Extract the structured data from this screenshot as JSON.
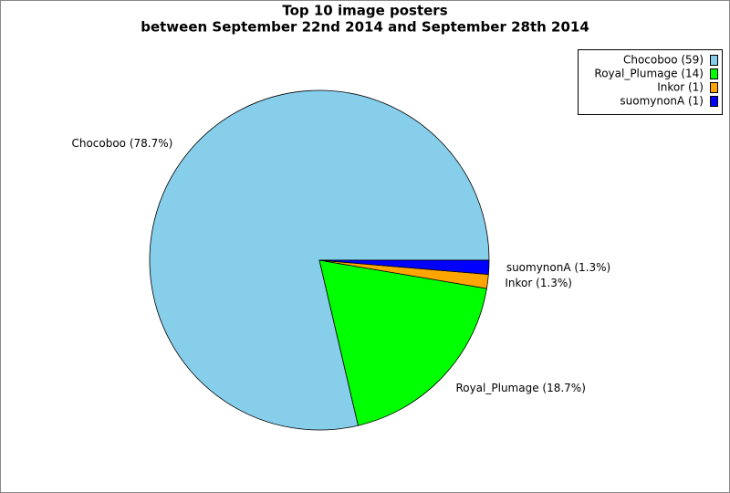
{
  "chart_data": {
    "type": "pie",
    "title": [
      "Top 10 image posters",
      "between September 22nd 2014 and September 28th 2014"
    ],
    "categories": [
      "Chocoboo (59)",
      "Royal_Plumage (14)",
      "Inkor (1)",
      "suomynonA (1)"
    ],
    "values": [
      59,
      14,
      1,
      1
    ],
    "value_labels": [
      "Chocoboo (78.7%)",
      "Royal_Plumage (18.7%)",
      "Inkor (1.3%)",
      "suomynonA (1.3%)"
    ],
    "colors": [
      "#87ceeb",
      "#00ff00",
      "#ffa500",
      "#0000ff"
    ],
    "legend": "upper right"
  }
}
